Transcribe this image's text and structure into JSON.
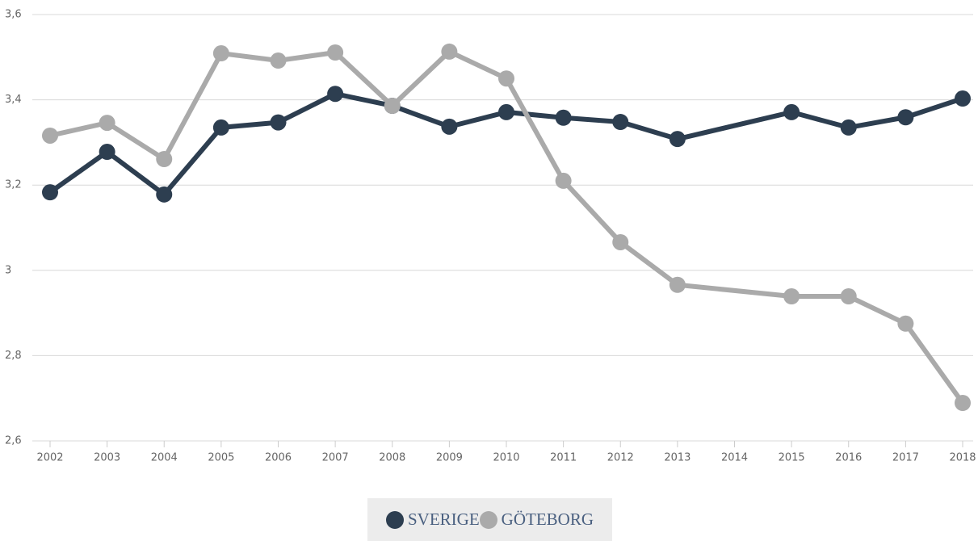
{
  "chart_data": {
    "type": "line",
    "x": [
      2002,
      2003,
      2004,
      2005,
      2006,
      2007,
      2008,
      2009,
      2010,
      2011,
      2012,
      2013,
      2015,
      2016,
      2017,
      2018
    ],
    "series": [
      {
        "name": "SVERIGE",
        "color": "#2d3e50",
        "values": [
          3.183,
          3.278,
          3.178,
          3.335,
          3.347,
          3.414,
          3.386,
          3.337,
          3.371,
          3.358,
          3.348,
          3.308,
          3.371,
          3.335,
          3.359,
          3.403
        ]
      },
      {
        "name": "GÖTEBORG",
        "color": "#aaaaaa",
        "values": [
          3.316,
          3.346,
          3.261,
          3.509,
          3.492,
          3.511,
          3.386,
          3.513,
          3.45,
          3.21,
          3.066,
          2.966,
          2.939,
          2.939,
          2.875,
          2.689
        ]
      }
    ],
    "xlim": [
      2002,
      2018
    ],
    "xticks": [
      2002,
      2003,
      2004,
      2005,
      2006,
      2007,
      2008,
      2009,
      2010,
      2011,
      2012,
      2013,
      2014,
      2015,
      2016,
      2017,
      2018
    ],
    "ylim": [
      2.6,
      3.6
    ],
    "yticks": [
      {
        "value": 2.6,
        "label": "2,6"
      },
      {
        "value": 2.8,
        "label": "2,8"
      },
      3,
      {
        "value": 3.2,
        "label": "3,2"
      },
      {
        "value": 3.4,
        "label": "3,4"
      },
      {
        "value": 3.6,
        "label": "3,6"
      }
    ],
    "grid": true
  }
}
